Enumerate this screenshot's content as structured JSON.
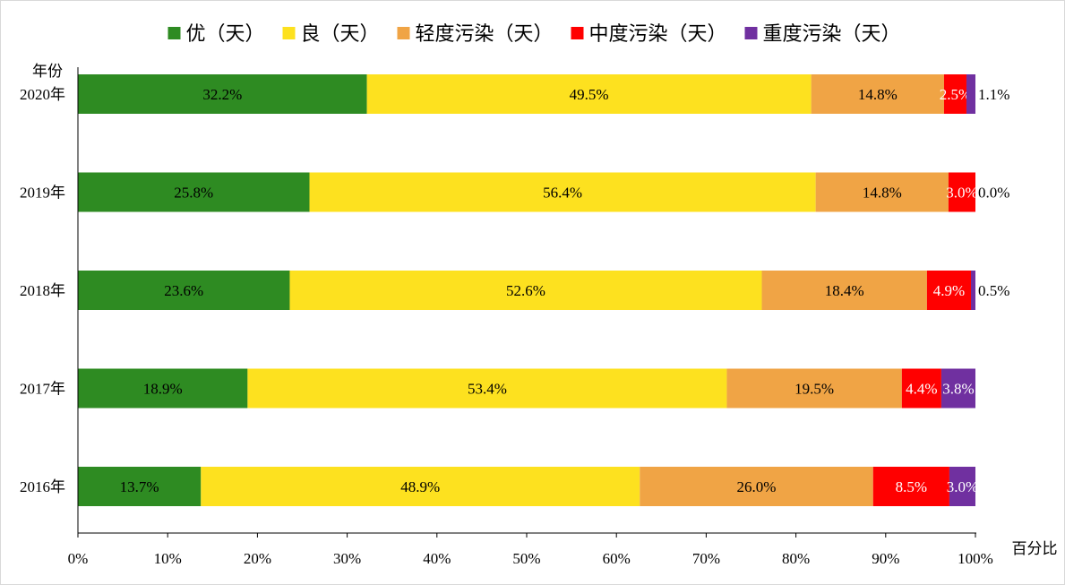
{
  "chart_data": {
    "type": "bar",
    "orientation": "horizontal",
    "stacked": "percent",
    "ylabel": "年份",
    "xlabel": "百分比",
    "categories": [
      "2020年",
      "2019年",
      "2018年",
      "2017年",
      "2016年"
    ],
    "xticks": [
      "0%",
      "10%",
      "20%",
      "30%",
      "40%",
      "50%",
      "60%",
      "70%",
      "80%",
      "90%",
      "100%"
    ],
    "xlim": [
      0,
      100
    ],
    "legend_position": "top",
    "grid": false,
    "series": [
      {
        "name": "优（天）",
        "color": "#2e8b22",
        "label_color": "#000000",
        "values": [
          32.2,
          25.8,
          23.6,
          18.9,
          13.7
        ],
        "labels": [
          "32.2%",
          "25.8%",
          "23.6%",
          "18.9%",
          "13.7%"
        ]
      },
      {
        "name": "良（天）",
        "color": "#fde11f",
        "label_color": "#000000",
        "values": [
          49.5,
          56.4,
          52.6,
          53.4,
          48.9
        ],
        "labels": [
          "49.5%",
          "56.4%",
          "52.6%",
          "53.4%",
          "48.9%"
        ]
      },
      {
        "name": "轻度污染（天）",
        "color": "#f0a445",
        "label_color": "#000000",
        "values": [
          14.8,
          14.8,
          18.4,
          19.5,
          26.0
        ],
        "labels": [
          "14.8%",
          "14.8%",
          "18.4%",
          "19.5%",
          "26.0%"
        ]
      },
      {
        "name": "中度污染（天）",
        "color": "#ff0000",
        "label_color": "#ffffff",
        "values": [
          2.5,
          3.0,
          4.9,
          4.4,
          8.5
        ],
        "labels": [
          "2.5%",
          "3.0%",
          "4.9%",
          "4.4%",
          "8.5%"
        ]
      },
      {
        "name": "重度污染（天）",
        "color": "#7030a0",
        "label_color": "#ffffff",
        "values": [
          1.1,
          0.0,
          0.5,
          3.8,
          3.0
        ],
        "labels": [
          "1.1%",
          "0.0%",
          "0.5%",
          "3.8%",
          "3.0%"
        ],
        "labels_outside": [
          true,
          true,
          true,
          false,
          false
        ]
      }
    ]
  }
}
